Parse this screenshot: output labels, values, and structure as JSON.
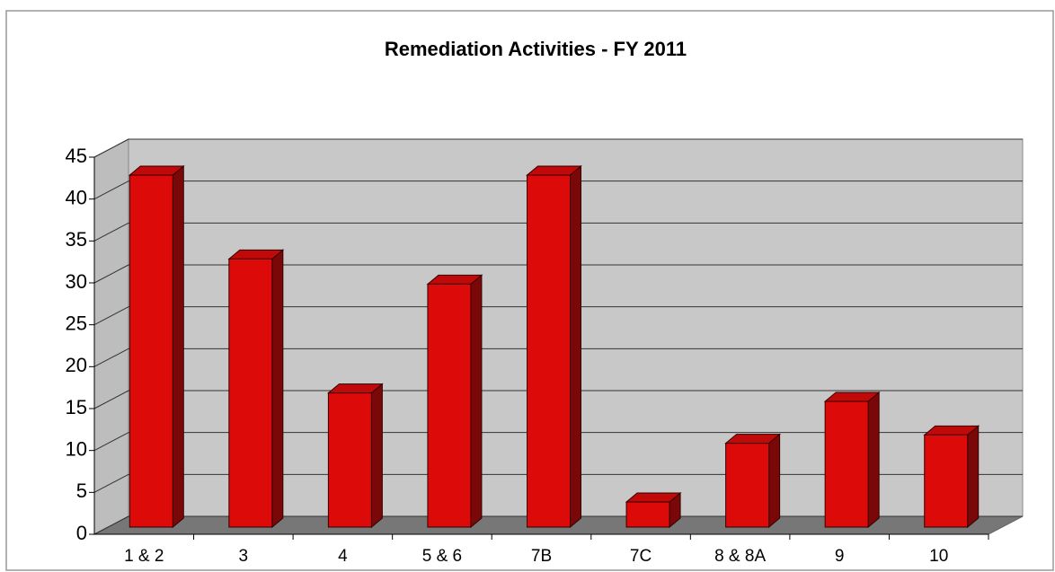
{
  "chart_data": {
    "type": "bar",
    "title": "Remediation Activities - FY 2011",
    "categories": [
      "1 & 2",
      "3",
      "4",
      "5 & 6",
      "7B",
      "7C",
      "8 & 8A",
      "9",
      "10"
    ],
    "values": [
      42,
      32,
      16,
      29,
      42,
      3,
      10,
      15,
      11
    ],
    "color": "#dd0a0a",
    "ylim": [
      0,
      45
    ],
    "yticks": [
      0,
      5,
      10,
      15,
      20,
      25,
      30,
      35,
      40,
      45
    ],
    "grid": true
  }
}
